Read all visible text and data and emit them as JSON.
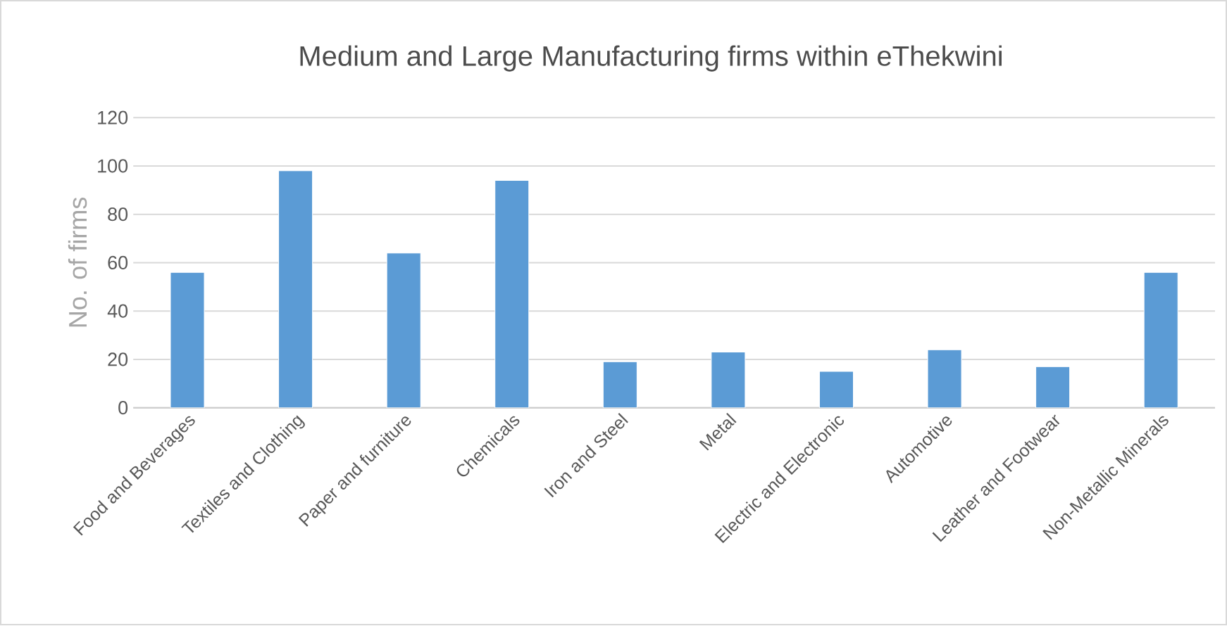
{
  "chart_data": {
    "type": "bar",
    "title": "Medium and Large Manufacturing firms within eThekwini",
    "ylabel": "No. of firms",
    "categories": [
      "Food and Beverages",
      "Textiles and Clothing",
      "Paper and furniture",
      "Chemicals",
      "Iron and Steel",
      "Metal",
      "Electric and Electronic",
      "Automotive",
      "Leather and Footwear",
      "Non-Metallic Minerals"
    ],
    "values": [
      56,
      98,
      64,
      94,
      19,
      23,
      15,
      24,
      17,
      56
    ],
    "color": "#5b9bd5",
    "ylim": [
      0,
      120
    ],
    "yticks": [
      0,
      20,
      40,
      60,
      80,
      100,
      120
    ],
    "grid": "y"
  }
}
